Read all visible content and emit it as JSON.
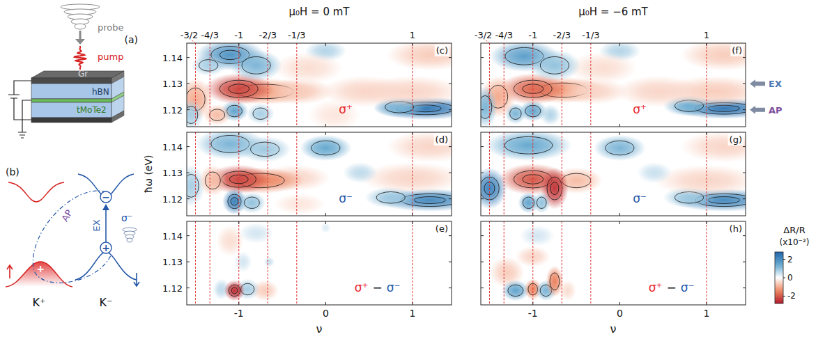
{
  "figure": {
    "filling_lines": [
      {
        "value": -1.5,
        "label": "-3/2"
      },
      {
        "value": -1.3333,
        "label": "-4/3"
      },
      {
        "value": -1,
        "label": "-1"
      },
      {
        "value": -0.6667,
        "label": "-2/3"
      },
      {
        "value": -0.3333,
        "label": "-1/3"
      },
      {
        "value": 1,
        "label": "1"
      }
    ],
    "energy_markers": [
      {
        "value": 1.13,
        "label": "EX",
        "color": "#4a78b5"
      },
      {
        "value": 1.12,
        "label": "AP",
        "color": "#7b4fa0"
      }
    ],
    "colorbar": {
      "label": "ΔR/R",
      "unit": "(x10⁻²)",
      "range": [
        -2.8,
        2.8
      ],
      "ticks": [
        -2,
        0,
        2
      ]
    }
  },
  "schematic": {
    "a": {
      "letter": "(a)",
      "probe": "probe",
      "pump": "pump",
      "graphene": "Gr",
      "hbn": "hBN",
      "sample": "tMoTe2"
    },
    "b": {
      "letter": "(b)",
      "ap": "AP",
      "ex": "EX",
      "polarization": "σ⁻",
      "valleys": [
        "K⁺",
        "K⁻"
      ],
      "charges": [
        "+",
        "−"
      ]
    }
  },
  "chart_data": [
    {
      "type": "heatmap",
      "panel": "(c)",
      "title": "μ₀H = 0 mT",
      "annotation": [
        {
          "text": "σ⁺",
          "color": "#e8262b"
        }
      ],
      "xlim": [
        -1.6,
        1.45
      ],
      "ylim": [
        1.1135,
        1.1455
      ],
      "xticks": [
        -1,
        0,
        1
      ],
      "yticks": [
        1.12,
        1.13,
        1.14
      ],
      "tick_labels": "y",
      "spots": {
        "x": [
          1.15,
          0.85,
          1.0,
          1.2,
          0.45,
          0.1,
          0.0,
          -0.2,
          -0.7,
          -0.3,
          -1.0,
          -1.1,
          -0.8,
          -1.35,
          -1.05,
          -0.75,
          -1.5,
          -1.55,
          -1.25
        ],
        "y": [
          1.1205,
          1.121,
          1.127,
          1.141,
          1.127,
          1.118,
          1.1425,
          1.136,
          1.127,
          1.127,
          1.128,
          1.141,
          1.137,
          1.137,
          1.1195,
          1.1185,
          1.124,
          1.118,
          1.118
        ],
        "sx": [
          0.3,
          0.15,
          0.3,
          0.25,
          0.25,
          0.15,
          0.12,
          0.2,
          0.3,
          0.2,
          0.2,
          0.2,
          0.15,
          0.1,
          0.08,
          0.08,
          0.1,
          0.07,
          0.08
        ],
        "sy": [
          0.0022,
          0.002,
          0.003,
          0.003,
          0.003,
          0.003,
          0.002,
          0.003,
          0.0025,
          0.0025,
          0.003,
          0.003,
          0.003,
          0.002,
          0.002,
          0.002,
          0.004,
          0.003,
          0.002
        ],
        "values": [
          2.4,
          1.2,
          -0.5,
          -0.6,
          -0.5,
          -0.3,
          0.7,
          -0.4,
          -1.2,
          -0.6,
          -2.2,
          1.8,
          1.2,
          0.8,
          1.5,
          0.8,
          -1.0,
          0.8,
          -0.8
        ]
      }
    },
    {
      "type": "heatmap",
      "panel": "(d)",
      "ylabel": "ħω (eV)",
      "annotation": [
        {
          "text": "σ⁻",
          "color": "#2457a8"
        }
      ],
      "xlim": [
        -1.6,
        1.45
      ],
      "ylim": [
        1.1135,
        1.1455
      ],
      "xticks": [
        -1,
        0,
        1
      ],
      "yticks": [
        1.12,
        1.13,
        1.14
      ],
      "tick_labels": "y",
      "spots": {
        "x": [
          1.2,
          0.75,
          1.0,
          1.2,
          0.0,
          0.4,
          -0.35,
          -0.3,
          -0.75,
          -1.0,
          -1.1,
          -0.7,
          -1.05,
          -0.85,
          -1.55,
          -1.3
        ],
        "y": [
          1.1195,
          1.1205,
          1.128,
          1.14,
          1.1395,
          1.13,
          1.128,
          1.118,
          1.127,
          1.1275,
          1.141,
          1.139,
          1.119,
          1.1185,
          1.125,
          1.127
        ],
        "sx": [
          0.3,
          0.15,
          0.3,
          0.25,
          0.15,
          0.1,
          0.2,
          0.15,
          0.25,
          0.18,
          0.2,
          0.15,
          0.07,
          0.08,
          0.08,
          0.08
        ],
        "sy": [
          0.0022,
          0.002,
          0.003,
          0.003,
          0.0025,
          0.002,
          0.0025,
          0.002,
          0.0025,
          0.0028,
          0.003,
          0.0025,
          0.0025,
          0.002,
          0.004,
          0.003
        ],
        "values": [
          2.0,
          0.9,
          -0.5,
          -0.5,
          1.4,
          0.6,
          -0.5,
          -0.3,
          -1.5,
          -2.2,
          1.2,
          0.9,
          2.2,
          1.0,
          0.8,
          -0.8
        ]
      }
    },
    {
      "type": "heatmap",
      "panel": "(e)",
      "xlabel": "ν",
      "annotation": [
        {
          "text": "σ⁺",
          "color": "#e8262b"
        },
        {
          "text": "−",
          "color": "#111111"
        },
        {
          "text": "σ⁻",
          "color": "#2457a8"
        }
      ],
      "xlim": [
        -1.6,
        1.45
      ],
      "ylim": [
        1.1135,
        1.1455
      ],
      "xticks": [
        -1,
        0,
        1
      ],
      "yticks": [
        1.12,
        1.13,
        1.14
      ],
      "tick_labels": true,
      "spots": {
        "x": [
          -1.1,
          -0.8,
          -1.2,
          -0.95,
          -0.65,
          -0.7,
          -0.9,
          -1.05,
          0.0
        ],
        "y": [
          1.138,
          1.141,
          1.1195,
          1.13,
          1.13,
          1.119,
          1.1195,
          1.119,
          1.143
        ],
        "sx": [
          0.08,
          0.1,
          0.05,
          0.05,
          0.03,
          0.08,
          0.07,
          0.06,
          0.03
        ],
        "sy": [
          0.003,
          0.002,
          0.002,
          0.002,
          0.001,
          0.002,
          0.002,
          0.002,
          0.001
        ],
        "values": [
          -0.4,
          0.4,
          0.6,
          0.4,
          0.5,
          -0.6,
          0.8,
          -2.5,
          0.3
        ]
      }
    },
    {
      "type": "heatmap",
      "panel": "(f)",
      "title": "μ₀H = −6 mT",
      "annotation": [
        {
          "text": "σ⁺",
          "color": "#e8262b"
        }
      ],
      "xlim": [
        -1.6,
        1.45
      ],
      "ylim": [
        1.1135,
        1.1455
      ],
      "xticks": [
        -1,
        0,
        1
      ],
      "yticks": [
        1.12,
        1.13,
        1.14
      ],
      "tick_labels": false,
      "spots": {
        "x": [
          1.2,
          0.8,
          1.1,
          1.2,
          0.45,
          0.0,
          -0.2,
          -0.65,
          -1.0,
          -1.1,
          -0.75,
          -1.0,
          -1.2,
          -0.8,
          -1.4,
          -1.55,
          -0.3
        ],
        "y": [
          1.1205,
          1.1215,
          1.127,
          1.141,
          1.127,
          1.1425,
          1.136,
          1.1275,
          1.128,
          1.1405,
          1.137,
          1.1195,
          1.1185,
          1.118,
          1.125,
          1.121,
          1.127
        ],
        "sx": [
          0.3,
          0.15,
          0.3,
          0.25,
          0.25,
          0.12,
          0.2,
          0.25,
          0.2,
          0.2,
          0.15,
          0.08,
          0.06,
          0.06,
          0.1,
          0.07,
          0.2
        ],
        "sy": [
          0.002,
          0.002,
          0.003,
          0.003,
          0.003,
          0.002,
          0.003,
          0.0025,
          0.003,
          0.003,
          0.003,
          0.002,
          0.002,
          0.002,
          0.004,
          0.004,
          0.0025
        ],
        "values": [
          2.4,
          1.3,
          -0.6,
          -0.6,
          -0.5,
          0.7,
          -0.4,
          -1.2,
          -1.8,
          1.6,
          1.0,
          1.5,
          1.2,
          0.7,
          -1.0,
          1.2,
          -0.5
        ]
      }
    },
    {
      "type": "heatmap",
      "panel": "(g)",
      "annotation": [
        {
          "text": "σ⁻",
          "color": "#2457a8"
        }
      ],
      "xlim": [
        -1.6,
        1.45
      ],
      "ylim": [
        1.1135,
        1.1455
      ],
      "xticks": [
        -1,
        0,
        1
      ],
      "yticks": [
        1.12,
        1.13,
        1.14
      ],
      "tick_labels": false,
      "spots": {
        "x": [
          1.2,
          0.8,
          1.0,
          1.2,
          0.0,
          -0.5,
          -1.0,
          -0.75,
          -1.05,
          -1.5,
          -1.05,
          -0.9,
          0.4
        ],
        "y": [
          1.1195,
          1.1205,
          1.127,
          1.14,
          1.1395,
          1.127,
          1.1275,
          1.124,
          1.1405,
          1.124,
          1.1185,
          1.1185,
          1.13
        ],
        "sx": [
          0.3,
          0.15,
          0.3,
          0.25,
          0.15,
          0.15,
          0.2,
          0.08,
          0.25,
          0.1,
          0.06,
          0.05,
          0.1
        ],
        "sy": [
          0.0022,
          0.002,
          0.003,
          0.003,
          0.0025,
          0.0025,
          0.003,
          0.004,
          0.003,
          0.004,
          0.002,
          0.002,
          0.002
        ],
        "values": [
          2.0,
          0.9,
          -0.5,
          -0.5,
          1.2,
          -0.8,
          -2.0,
          -2.4,
          1.4,
          2.2,
          1.5,
          1.0,
          0.5
        ]
      }
    },
    {
      "type": "heatmap",
      "panel": "(h)",
      "xlabel": "ν",
      "annotation": [
        {
          "text": "σ⁺",
          "color": "#e8262b"
        },
        {
          "text": "−",
          "color": "#111111"
        },
        {
          "text": "σ⁻",
          "color": "#2457a8"
        }
      ],
      "xlim": [
        -1.6,
        1.45
      ],
      "ylim": [
        1.1135,
        1.1455
      ],
      "xticks": [
        -1,
        0,
        1
      ],
      "yticks": [
        1.12,
        1.13,
        1.14
      ],
      "tick_labels": "x",
      "spots": {
        "x": [
          -1.3,
          -1.0,
          -0.95,
          -1.2,
          -1.0,
          -0.85,
          -0.75,
          -0.6
        ],
        "y": [
          1.126,
          1.132,
          1.14,
          1.119,
          1.1195,
          1.119,
          1.1225,
          1.119
        ],
        "sx": [
          0.1,
          0.1,
          0.1,
          0.08,
          0.05,
          0.06,
          0.05,
          0.05
        ],
        "sy": [
          0.003,
          0.002,
          0.002,
          0.002,
          0.002,
          0.002,
          0.003,
          0.002
        ],
        "values": [
          -0.6,
          -0.5,
          0.4,
          1.5,
          -1.5,
          1.2,
          -1.5,
          -0.4
        ]
      }
    }
  ]
}
